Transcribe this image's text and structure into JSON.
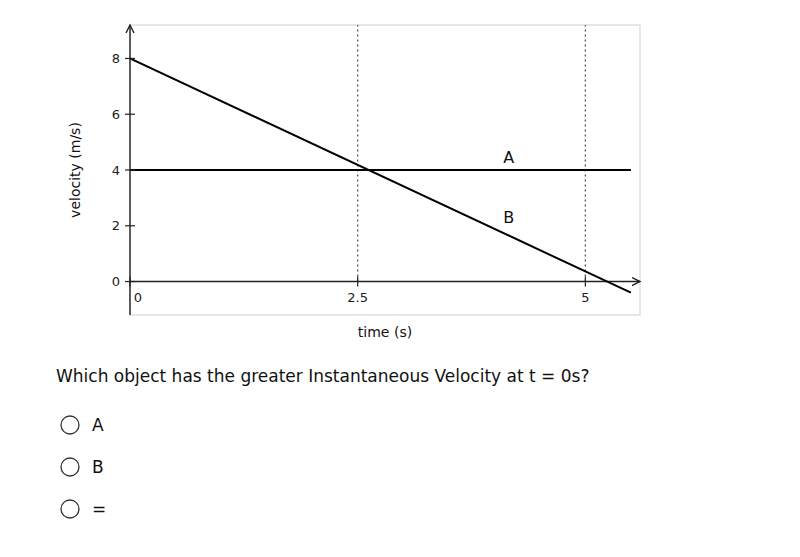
{
  "chart_data": {
    "type": "line",
    "xlabel": "time (s)",
    "ylabel": "velocity (m/s)",
    "x": [
      0,
      5.5
    ],
    "series": [
      {
        "name": "A",
        "color": "#000000",
        "values": [
          4,
          4
        ]
      },
      {
        "name": "B",
        "color": "#000000",
        "values": [
          8.0,
          -0.4
        ]
      }
    ],
    "vlines": [
      2.5,
      5.0
    ],
    "xlim": [
      0,
      5.6
    ],
    "ylim": [
      -1.2,
      9.2
    ],
    "xticks": [
      0,
      2.5,
      5
    ],
    "yticks": [
      0,
      2,
      4,
      6,
      8
    ],
    "grid": false
  },
  "question": "Which object has the greater Instantaneous Velocity at t = 0s?",
  "options": [
    "A",
    "B",
    "="
  ]
}
